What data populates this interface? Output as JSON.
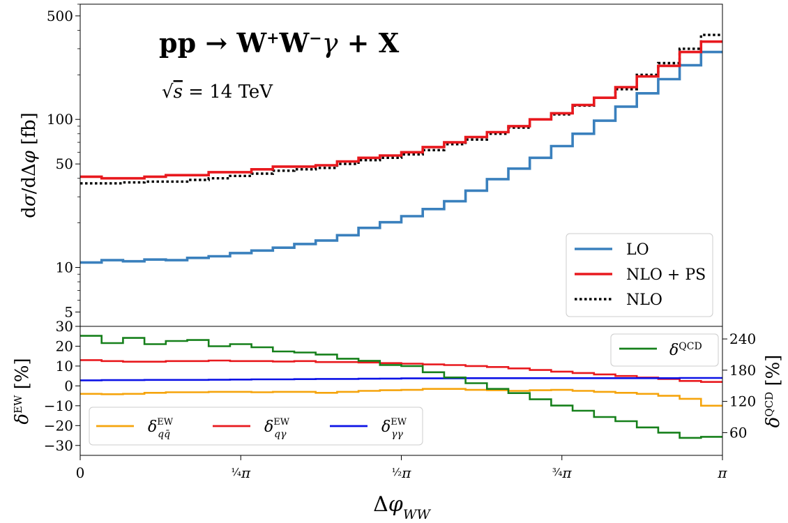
{
  "chart_data": [
    {
      "type": "line",
      "title": "pp → W⁺W⁻γ + X",
      "subtitle": "√s = 14 TeV",
      "xlabel": "Δφ_WW",
      "ylabel": "dσ/dΔφ [fb]",
      "yscale": "log",
      "ylim": [
        4,
        600
      ],
      "xlim": [
        0,
        3.14159
      ],
      "yticks": [
        5,
        10,
        50,
        100,
        500
      ],
      "yticklabels": [
        "5",
        "10",
        "50",
        "100",
        "500"
      ],
      "legend_position": "bottom-right",
      "x_bin_edges": [
        0,
        0.1047,
        0.2094,
        0.3142,
        0.4189,
        0.5236,
        0.6283,
        0.733,
        0.8378,
        0.9425,
        1.0472,
        1.1519,
        1.2566,
        1.3614,
        1.4661,
        1.5708,
        1.6755,
        1.7802,
        1.885,
        1.9897,
        2.0944,
        2.1991,
        2.3038,
        2.4086,
        2.5133,
        2.618,
        2.7227,
        2.8274,
        2.9322,
        3.0369,
        3.1416
      ],
      "series": [
        {
          "name": "LO",
          "color": "#3a80bd",
          "style": "solid",
          "values": [
            10.8,
            11.2,
            11.0,
            11.3,
            11.2,
            11.6,
            11.9,
            12.5,
            13.0,
            13.6,
            14.4,
            15.2,
            16.5,
            18.5,
            20.2,
            22.2,
            24.8,
            28.0,
            33.0,
            39.5,
            46.5,
            55.0,
            66.0,
            80.0,
            98.0,
            122.0,
            150.0,
            187.0,
            232.0,
            285.0
          ]
        },
        {
          "name": "NLO + PS",
          "color": "#e8191e",
          "style": "solid",
          "values": [
            41.0,
            40.0,
            40.0,
            41.0,
            42.0,
            42.0,
            44.0,
            44.0,
            46.0,
            48.0,
            48.0,
            49.0,
            52.0,
            55.0,
            57.0,
            60.0,
            65.0,
            70.0,
            76.0,
            82.0,
            90.0,
            100.0,
            110.0,
            125.0,
            140.0,
            165.0,
            195.0,
            230.0,
            285.0,
            335.0
          ]
        },
        {
          "name": "NLO",
          "color": "#000000",
          "style": "dotted",
          "values": [
            37.0,
            37.0,
            37.5,
            38.0,
            38.0,
            39.0,
            40.0,
            41.5,
            43.0,
            45.0,
            46.0,
            47.0,
            50.0,
            53.0,
            55.0,
            58.0,
            62.0,
            68.0,
            73.0,
            80.0,
            88.0,
            100.0,
            108.0,
            124.0,
            140.0,
            160.0,
            200.0,
            240.0,
            300.0,
            372.0
          ]
        }
      ]
    },
    {
      "type": "line",
      "xlabel": "Δφ_WW",
      "ylabel": "δ^EW [%]",
      "ylabel_right": "δ^QCD [%]",
      "ylim": [
        -35,
        30
      ],
      "yticks": [
        -30,
        -20,
        -10,
        0,
        10,
        20,
        30
      ],
      "yticklabels": [
        "−30",
        "−20",
        "−10",
        "0",
        "10",
        "20",
        "30"
      ],
      "ylim_right": [
        16.3,
        264.2
      ],
      "yticks_right": [
        60,
        120,
        180,
        240
      ],
      "yticklabels_right": [
        "60",
        "120",
        "180",
        "240"
      ],
      "xticks": [
        0,
        0.7854,
        1.5708,
        2.3562,
        3.1416
      ],
      "xticklabels": [
        "0",
        "¼π",
        "½π",
        "¾π",
        "π"
      ],
      "x_bin_edges": [
        0,
        0.1047,
        0.2094,
        0.3142,
        0.4189,
        0.5236,
        0.6283,
        0.733,
        0.8378,
        0.9425,
        1.0472,
        1.1519,
        1.2566,
        1.3614,
        1.4661,
        1.5708,
        1.6755,
        1.7802,
        1.885,
        1.9897,
        2.0944,
        2.1991,
        2.3038,
        2.4086,
        2.5133,
        2.618,
        2.7227,
        2.8274,
        2.9322,
        3.0369,
        3.1416
      ],
      "series": [
        {
          "name": "δ^EW_qq̄",
          "color": "#f5a40c",
          "axis": "left",
          "values": [
            -4.0,
            -4.2,
            -4.0,
            -3.5,
            -3.2,
            -3.2,
            -3.0,
            -3.0,
            -3.2,
            -3.0,
            -3.0,
            -3.5,
            -3.0,
            -2.5,
            -2.2,
            -2.0,
            -1.5,
            -1.5,
            -2.0,
            -2.2,
            -2.5,
            -2.2,
            -2.0,
            -2.5,
            -3.0,
            -3.5,
            -4.0,
            -5.0,
            -6.5,
            -10.0
          ]
        },
        {
          "name": "δ^EW_qγ",
          "color": "#e8191e",
          "axis": "left",
          "values": [
            13.0,
            12.5,
            12.2,
            12.2,
            12.5,
            12.5,
            12.8,
            12.5,
            12.5,
            12.3,
            12.5,
            12.0,
            12.0,
            11.8,
            11.5,
            11.2,
            10.8,
            10.5,
            10.0,
            9.5,
            8.8,
            8.0,
            7.2,
            6.5,
            5.8,
            5.0,
            4.2,
            3.5,
            2.5,
            2.0
          ]
        },
        {
          "name": "δ^EW_γγ",
          "color": "#0b12e6",
          "axis": "left",
          "values": [
            2.8,
            2.9,
            2.9,
            3.0,
            3.0,
            3.0,
            3.1,
            3.2,
            3.3,
            3.3,
            3.4,
            3.5,
            3.5,
            3.6,
            3.7,
            3.8,
            3.8,
            3.8,
            3.9,
            3.9,
            3.9,
            3.9,
            3.9,
            3.9,
            3.9,
            3.9,
            3.9,
            3.9,
            4.0,
            4.0
          ]
        },
        {
          "name": "δ^QCD",
          "color": "#16801b",
          "axis": "right",
          "values": [
            246,
            232,
            242,
            230,
            236,
            238,
            226,
            230,
            224,
            216,
            214,
            210,
            202,
            198,
            190,
            188,
            176,
            166,
            155,
            144,
            136,
            124,
            112,
            102,
            90,
            82,
            70,
            60,
            50,
            52
          ]
        }
      ]
    }
  ],
  "legends": {
    "main": [
      {
        "label": "LO",
        "color": "#3a80bd",
        "style": "solid"
      },
      {
        "label": "NLO + PS",
        "color": "#e8191e",
        "style": "solid"
      },
      {
        "label": "NLO",
        "color": "#000000",
        "style": "dotted"
      }
    ],
    "qcd": [
      {
        "label": "δQCD",
        "color": "#16801b",
        "style": "solid"
      }
    ],
    "ew": [
      {
        "label": "δEWqq̄",
        "color": "#f5a40c",
        "style": "solid"
      },
      {
        "label": "δEWqγ",
        "color": "#e8191e",
        "style": "solid"
      },
      {
        "label": "δEWγγ",
        "color": "#0b12e6",
        "style": "solid"
      }
    ]
  }
}
